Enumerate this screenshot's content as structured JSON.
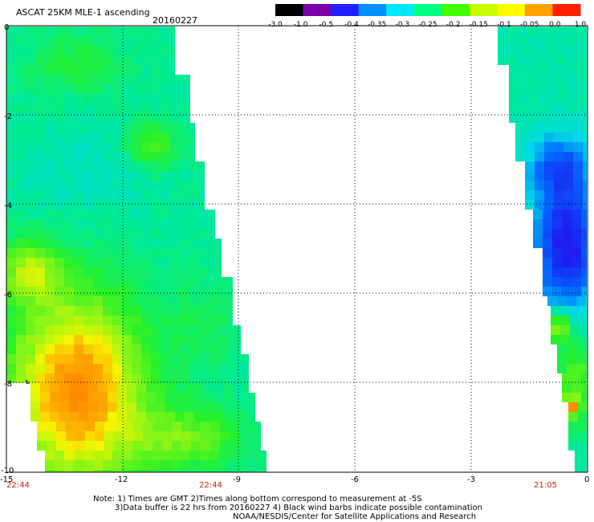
{
  "header": {
    "title": "ASCAT 25KM MLE-1 ascending",
    "date": "20160227"
  },
  "colorbar": {
    "tick_labels": [
      "-3.0",
      "-1.0",
      "-0.5",
      "-0.4",
      "-0.35",
      "-0.3",
      "-0.25",
      "-0.2",
      "-0.15",
      "-0.1",
      "-0.05",
      "0.0",
      "1.0"
    ],
    "colors": [
      "#000000",
      "#7a00a8",
      "#2020ff",
      "#0090ff",
      "#00e8ff",
      "#00ff80",
      "#40ff00",
      "#c8ff00",
      "#ffff00",
      "#ffa000",
      "#ff2000"
    ]
  },
  "map": {
    "lat_ticks": [
      "0",
      "-2",
      "-4",
      "-6",
      "-8",
      "-10"
    ],
    "lon_ticks": [
      "-15",
      "-12",
      "-9",
      "-6",
      "-3",
      "0"
    ],
    "times": [
      "22:44",
      "22:44",
      "21:05"
    ],
    "time_color": "#cc2200"
  },
  "notes": {
    "line1": "Note: 1) Times are GMT 2)Times along bottom correspond to measurement at -5S",
    "line2": "3)Data buffer is 22 hrs from 20160227 4) Black wind barbs indicate possible contamination",
    "line3": "NOAA/NESDIS/Center for Satellite Applications and Research"
  }
}
